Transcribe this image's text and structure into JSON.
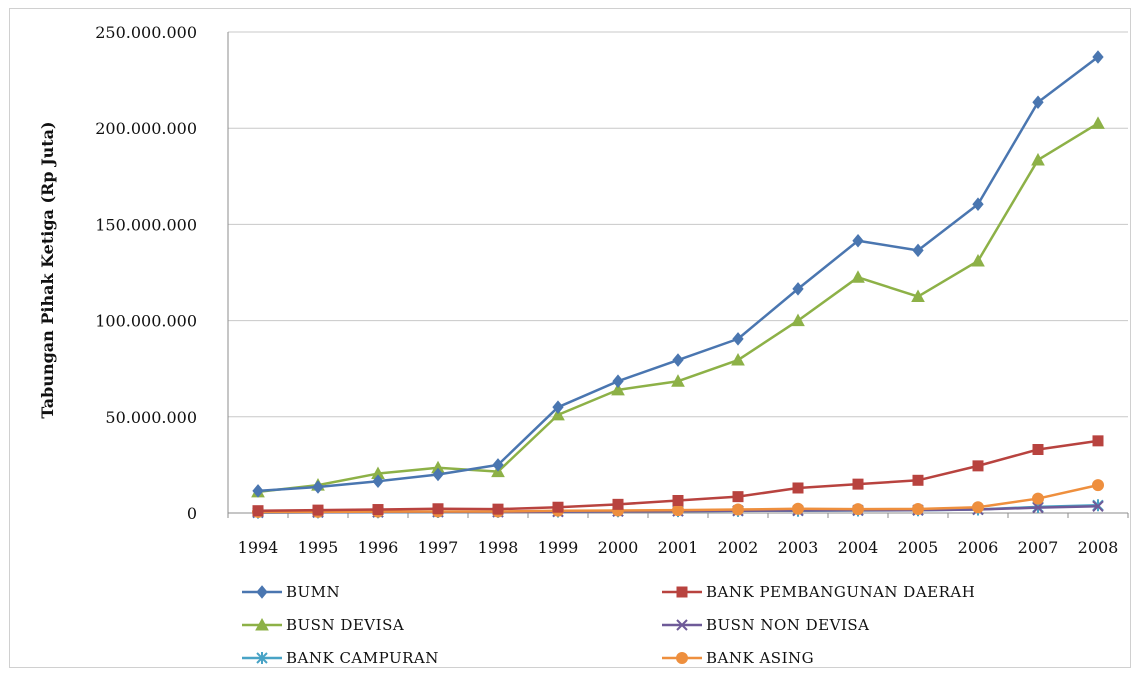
{
  "chart_data": {
    "type": "line",
    "title": "",
    "xlabel": "",
    "ylabel": "Tabungan Pihak Ketiga (Rp Juta)",
    "x": [
      "1994",
      "1995",
      "1996",
      "1997",
      "1998",
      "1999",
      "2000",
      "2001",
      "2002",
      "2003",
      "2004",
      "2005",
      "2006",
      "2007",
      "2008"
    ],
    "ylim": [
      0,
      250000000
    ],
    "yticks": [
      0,
      50000000,
      100000000,
      150000000,
      200000000,
      250000000
    ],
    "ytick_labels": [
      "0",
      "50.000.000",
      "100.000.000",
      "150.000.000",
      "200.000.000",
      "250.000.000"
    ],
    "grid": true,
    "legend_position": "bottom",
    "series": [
      {
        "name": "BUMN",
        "color": "#4a76b0",
        "marker": "diamond",
        "values": [
          11500000,
          13500000,
          16500000,
          20000000,
          25000000,
          55000000,
          68500000,
          79500000,
          90500000,
          116500000,
          141500000,
          136500000,
          160500000,
          213500000,
          237000000
        ]
      },
      {
        "name": "BANK PEMBANGUNAN DAERAH",
        "color": "#b8433f",
        "marker": "square",
        "values": [
          1200000,
          1500000,
          1800000,
          2200000,
          2000000,
          3000000,
          4500000,
          6500000,
          8500000,
          13000000,
          15000000,
          17000000,
          24500000,
          33000000,
          37500000
        ]
      },
      {
        "name": "BUSN DEVISA",
        "color": "#8db147",
        "marker": "triangle",
        "values": [
          11000000,
          14500000,
          20500000,
          23500000,
          21500000,
          51000000,
          64000000,
          68500000,
          79500000,
          100000000,
          122500000,
          112500000,
          131000000,
          183500000,
          202500000
        ]
      },
      {
        "name": "BUSN NON DEVISA",
        "color": "#6e5a98",
        "marker": "x",
        "values": [
          300000,
          400000,
          500000,
          600000,
          500000,
          700000,
          900000,
          1000000,
          1200000,
          1300000,
          1400000,
          1500000,
          1800000,
          2800000,
          3500000
        ]
      },
      {
        "name": "BANK CAMPURAN",
        "color": "#48a3c6",
        "marker": "star",
        "values": [
          200000,
          300000,
          400000,
          500000,
          600000,
          800000,
          900000,
          1000000,
          1100000,
          1200000,
          1300000,
          1400000,
          1800000,
          3200000,
          4000000
        ]
      },
      {
        "name": "BANK ASING",
        "color": "#ee8f3e",
        "marker": "circle",
        "values": [
          500000,
          600000,
          700000,
          800000,
          800000,
          1200000,
          1300000,
          1500000,
          1800000,
          2200000,
          2000000,
          2100000,
          3000000,
          7500000,
          14500000
        ]
      }
    ]
  }
}
